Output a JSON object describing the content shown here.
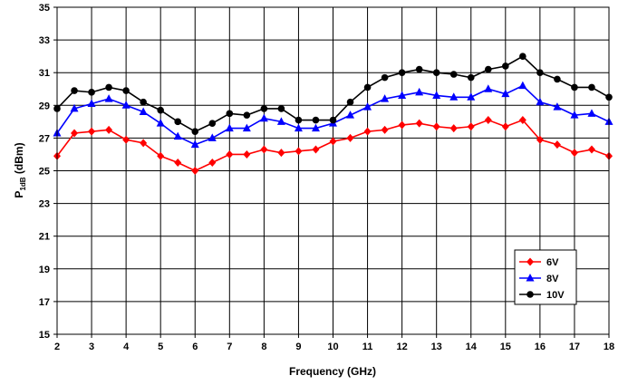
{
  "chart_data": {
    "type": "line",
    "xlabel": "Frequency (GHz)",
    "ylabel": {
      "main": "P",
      "subscript": "1dB",
      "suffix": " (dBm)"
    },
    "xlim": [
      2,
      18
    ],
    "ylim": [
      15,
      35
    ],
    "xticks": [
      2,
      3,
      4,
      5,
      6,
      7,
      8,
      9,
      10,
      11,
      12,
      13,
      14,
      15,
      16,
      17,
      18
    ],
    "yticks": [
      15,
      17,
      19,
      21,
      23,
      25,
      27,
      29,
      31,
      33,
      35
    ],
    "grid": true,
    "legend_position": "bottom-right",
    "x": [
      2,
      2.5,
      3,
      3.5,
      4,
      4.5,
      5,
      5.5,
      6,
      6.5,
      7,
      7.5,
      8,
      8.5,
      9,
      9.5,
      10,
      10.5,
      11,
      11.5,
      12,
      12.5,
      13,
      13.5,
      14,
      14.5,
      15,
      15.5,
      16,
      16.5,
      17,
      17.5,
      18
    ],
    "series": [
      {
        "name": "6V",
        "color": "#ff0000",
        "marker": "diamond",
        "values": [
          25.9,
          27.3,
          27.4,
          27.5,
          26.9,
          26.7,
          25.9,
          25.5,
          25.0,
          25.5,
          26.0,
          26.0,
          26.3,
          26.1,
          26.2,
          26.3,
          26.8,
          27.0,
          27.4,
          27.5,
          27.8,
          27.9,
          27.7,
          27.6,
          27.7,
          28.1,
          27.7,
          28.1,
          26.9,
          26.6,
          26.1,
          26.3,
          25.9
        ]
      },
      {
        "name": "8V",
        "color": "#0000ff",
        "marker": "triangle",
        "values": [
          27.3,
          28.8,
          29.1,
          29.4,
          29.0,
          28.6,
          27.9,
          27.1,
          26.6,
          27.0,
          27.6,
          27.6,
          28.2,
          28.0,
          27.6,
          27.6,
          27.9,
          28.4,
          28.9,
          29.4,
          29.6,
          29.8,
          29.6,
          29.5,
          29.5,
          30.0,
          29.7,
          30.2,
          29.2,
          28.9,
          28.4,
          28.5,
          28.0
        ]
      },
      {
        "name": "10V",
        "color": "#000000",
        "marker": "circle",
        "values": [
          28.8,
          29.9,
          29.8,
          30.1,
          29.9,
          29.2,
          28.7,
          28.0,
          27.4,
          27.9,
          28.5,
          28.4,
          28.8,
          28.8,
          28.1,
          28.1,
          28.1,
          29.2,
          30.1,
          30.7,
          31.0,
          31.2,
          31.0,
          30.9,
          30.7,
          31.2,
          31.4,
          32.0,
          31.0,
          30.6,
          30.1,
          30.1,
          29.5
        ]
      }
    ]
  }
}
